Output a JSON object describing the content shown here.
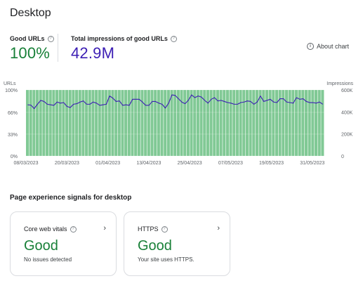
{
  "page": {
    "title": "Desktop"
  },
  "metrics": {
    "good_urls": {
      "label": "Good URLs",
      "value": "100%"
    },
    "impressions": {
      "label": "Total impressions of good URLs",
      "value": "42.9M"
    }
  },
  "about_chart": {
    "label": "About chart"
  },
  "chart_data": {
    "type": "bar",
    "left_axis_title": "URLs",
    "right_axis_title": "Impressions",
    "left_ticks": [
      "100%",
      "66%",
      "33%",
      "0%"
    ],
    "right_ticks": [
      "600K",
      "400K",
      "200K",
      "0"
    ],
    "x_tick_labels": [
      "08/03/2023",
      "20/03/2023",
      "01/04/2023",
      "13/04/2023",
      "25/04/2023",
      "07/05/2023",
      "19/05/2023",
      "31/05/2023"
    ],
    "ylim_left": [
      0,
      100
    ],
    "ylim_right": [
      0,
      600000
    ],
    "bar_values_percent_good": [
      100,
      100,
      100,
      100,
      100,
      100,
      100,
      100,
      100,
      100,
      100,
      100,
      100,
      100,
      100,
      100,
      100,
      100,
      100,
      100,
      100,
      100,
      100,
      100,
      100,
      100,
      100,
      100,
      100,
      100,
      100,
      100,
      100,
      100,
      100,
      100,
      100,
      100,
      100,
      100,
      100,
      100,
      100,
      100,
      100,
      100,
      100,
      100,
      100,
      100,
      100,
      100,
      100,
      100,
      100,
      100,
      100,
      100,
      100,
      100,
      100,
      100,
      100,
      100,
      100,
      100,
      100,
      100,
      100,
      100,
      100,
      100,
      100,
      100,
      100,
      100,
      100,
      100,
      100,
      100,
      100,
      100,
      100,
      100,
      100,
      100,
      100,
      100,
      100,
      100,
      100
    ],
    "impressions_line": [
      465000,
      462000,
      430000,
      470000,
      505000,
      495000,
      470000,
      465000,
      460000,
      490000,
      480000,
      485000,
      450000,
      440000,
      470000,
      475000,
      490000,
      500000,
      470000,
      470000,
      490000,
      480000,
      460000,
      465000,
      470000,
      545000,
      525000,
      495000,
      500000,
      460000,
      465000,
      460000,
      515000,
      515000,
      515000,
      490000,
      460000,
      460000,
      495000,
      495000,
      480000,
      470000,
      435000,
      480000,
      555000,
      550000,
      520000,
      490000,
      475000,
      505000,
      555000,
      530000,
      545000,
      535000,
      505000,
      480000,
      515000,
      530000,
      500000,
      505000,
      495000,
      485000,
      480000,
      470000,
      470000,
      485000,
      490000,
      500000,
      495000,
      470000,
      490000,
      545000,
      495000,
      505000,
      515000,
      490000,
      485000,
      520000,
      520000,
      490000,
      485000,
      480000,
      530000,
      515000,
      520000,
      495000,
      485000,
      485000,
      480000,
      490000,
      470000
    ],
    "grid": true,
    "series": [
      {
        "name": "Good URLs",
        "color": "#81c995"
      },
      {
        "name": "Impressions",
        "color": "#3c1eb4"
      }
    ]
  },
  "experience": {
    "section_title": "Page experience signals for desktop",
    "cards": [
      {
        "title": "Core web vitals",
        "status": "Good",
        "desc": "No issues detected"
      },
      {
        "title": "HTTPS",
        "status": "Good",
        "desc": "Your site uses HTTPS."
      }
    ]
  },
  "colors": {
    "good": "#188038",
    "impressions": "#3c1eb4",
    "bar": "#81c995"
  }
}
